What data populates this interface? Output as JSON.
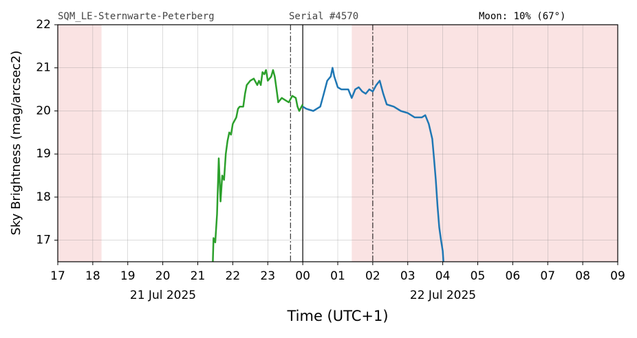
{
  "chart_data": {
    "type": "line",
    "station": "SQM_LE-Sternwarte-Peterberg",
    "serial": "Serial #4570",
    "moon": "Moon: 10% (67°)",
    "ylabel": "Sky Brightness (mag/arcsec2)",
    "xlabel": "Time (UTC+1)",
    "date_labels": [
      "21 Jul 2025",
      "22 Jul 2025"
    ],
    "xlim": [
      17,
      33
    ],
    "ylim": [
      16.5,
      22
    ],
    "xticks": [
      17,
      18,
      19,
      20,
      21,
      22,
      23,
      {
        "value": 24,
        "label": "00"
      },
      {
        "value": 25,
        "label": "01"
      },
      {
        "value": 26,
        "label": "02"
      },
      {
        "value": 27,
        "label": "03"
      },
      {
        "value": 28,
        "label": "04"
      },
      {
        "value": 29,
        "label": "05"
      },
      {
        "value": 30,
        "label": "06"
      },
      {
        "value": 31,
        "label": "07"
      },
      {
        "value": 32,
        "label": "08"
      },
      {
        "value": 33,
        "label": "09"
      }
    ],
    "yticks": [
      17,
      18,
      19,
      20,
      21,
      22
    ],
    "grid": true,
    "shaded_regions": [
      [
        17,
        18.25
      ],
      [
        25.4,
        33
      ]
    ],
    "shade_color": "#fae3e3",
    "vlines": [
      {
        "x": 23.65,
        "style": "dashdot"
      },
      {
        "x": 24,
        "style": "solid"
      },
      {
        "x": 26.0,
        "style": "dashdot"
      }
    ],
    "series": [
      {
        "color": "#2ca02c",
        "x": [
          21.43,
          21.45,
          21.5,
          21.55,
          21.6,
          21.65,
          21.7,
          21.75,
          21.8,
          21.85,
          21.9,
          21.95,
          22.0,
          22.1,
          22.15,
          22.2,
          22.3,
          22.35,
          22.4,
          22.5,
          22.6,
          22.7,
          22.75,
          22.8,
          22.85,
          22.9,
          22.95,
          23.0,
          23.1,
          23.15,
          23.2,
          23.25,
          23.3,
          23.4,
          23.5,
          23.6,
          23.7,
          23.8,
          23.85,
          23.9,
          24.0
        ],
        "values": [
          16.5,
          17.05,
          16.95,
          17.6,
          18.9,
          17.9,
          18.5,
          18.4,
          19.0,
          19.3,
          19.5,
          19.45,
          19.7,
          19.85,
          20.05,
          20.1,
          20.1,
          20.4,
          20.6,
          20.7,
          20.75,
          20.6,
          20.7,
          20.6,
          20.9,
          20.85,
          20.95,
          20.7,
          20.8,
          20.95,
          20.8,
          20.5,
          20.2,
          20.3,
          20.25,
          20.2,
          20.35,
          20.3,
          20.1,
          20.0,
          20.15
        ]
      },
      {
        "color": "#1f77b4",
        "x": [
          24.0,
          24.1,
          24.3,
          24.5,
          24.6,
          24.7,
          24.8,
          24.85,
          24.9,
          25.0,
          25.1,
          25.3,
          25.4,
          25.5,
          25.6,
          25.7,
          25.8,
          25.9,
          26.0,
          26.1,
          26.2,
          26.3,
          26.4,
          26.6,
          26.8,
          27.0,
          27.2,
          27.4,
          27.5,
          27.6,
          27.7,
          27.75,
          27.8,
          27.85,
          27.9,
          27.95,
          28.0,
          28.02
        ],
        "values": [
          20.1,
          20.05,
          20.0,
          20.1,
          20.4,
          20.7,
          20.8,
          21.0,
          20.8,
          20.55,
          20.5,
          20.5,
          20.3,
          20.5,
          20.55,
          20.45,
          20.4,
          20.5,
          20.45,
          20.6,
          20.7,
          20.4,
          20.15,
          20.1,
          20.0,
          19.95,
          19.85,
          19.85,
          19.9,
          19.7,
          19.35,
          18.9,
          18.4,
          17.8,
          17.3,
          17.0,
          16.75,
          16.5
        ]
      }
    ]
  }
}
